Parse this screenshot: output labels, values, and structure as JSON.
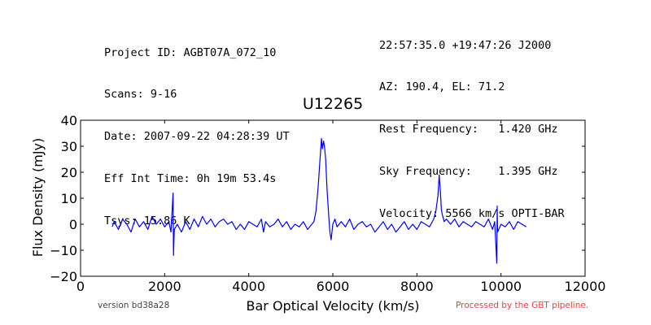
{
  "header": {
    "left_lines": [
      "Project ID: AGBT07A_072_10",
      "Scans: 9-16",
      "Date: 2007-09-22 04:28:39 UT",
      "Eff Int Time: 0h 19m 53.4s",
      "Tsys: 15.86 K"
    ],
    "right_lines": [
      "22:57:35.0 +19:47:26 J2000",
      "AZ: 190.4, EL: 71.2",
      "Rest Frequency:   1.420 GHz",
      "Sky Frequency:    1.395 GHz",
      "Velocity: 5566 km/s OPTI-BAR"
    ]
  },
  "footer": {
    "version": "version bd38a28",
    "pipeline": "Processed by the GBT pipeline."
  },
  "colors": {
    "spectrum": "#0000ff",
    "pipeline_text": "#e84040"
  },
  "chart_data": {
    "type": "line",
    "title": "U12265",
    "xlabel": "Bar Optical Velocity (km/s)",
    "ylabel": "Flux Density (mJy)",
    "xlim": [
      0,
      12000
    ],
    "ylim": [
      -20,
      40
    ],
    "xticks": [
      0,
      2000,
      4000,
      6000,
      8000,
      10000,
      12000
    ],
    "yticks": [
      -20,
      -10,
      0,
      10,
      20,
      30,
      40
    ],
    "grid": false,
    "series": [
      {
        "values_x": [
          750,
          800,
          900,
          1000,
          1100,
          1200,
          1300,
          1400,
          1500,
          1600,
          1700,
          1800,
          1900,
          2000,
          2100,
          2150,
          2200,
          2210,
          2230,
          2300,
          2400,
          2500,
          2600,
          2700,
          2800,
          2900,
          3000,
          3100,
          3200,
          3300,
          3400,
          3500,
          3600,
          3700,
          3800,
          3900,
          4000,
          4100,
          4200,
          4300,
          4350,
          4400,
          4500,
          4600,
          4700,
          4800,
          4900,
          5000,
          5100,
          5200,
          5300,
          5400,
          5500,
          5550,
          5600,
          5650,
          5700,
          5730,
          5750,
          5780,
          5800,
          5830,
          5860,
          5900,
          5930,
          5960,
          6000,
          6050,
          6100,
          6200,
          6300,
          6400,
          6500,
          6600,
          6700,
          6800,
          6900,
          7000,
          7100,
          7200,
          7300,
          7400,
          7500,
          7600,
          7700,
          7800,
          7900,
          8000,
          8100,
          8200,
          8300,
          8400,
          8450,
          8500,
          8530,
          8560,
          8580,
          8600,
          8650,
          8700,
          8800,
          8900,
          9000,
          9100,
          9200,
          9300,
          9400,
          9500,
          9600,
          9700,
          9800,
          9850,
          9900,
          9910,
          9920,
          10000,
          10100,
          10200,
          10300,
          10400,
          10500,
          10600
        ],
        "values_y": [
          -1,
          1,
          -2,
          2,
          0,
          -3,
          2,
          -1,
          1,
          -2,
          3,
          0,
          2,
          -1,
          1,
          -3,
          12,
          -12,
          -2,
          0,
          -3,
          1,
          -2,
          2,
          -1,
          3,
          0,
          2,
          -1,
          1,
          2,
          0,
          1,
          -2,
          0,
          -2,
          1,
          0,
          -1,
          2,
          -3,
          1,
          -1,
          0,
          2,
          -1,
          1,
          -2,
          0,
          -1,
          1,
          -2,
          0,
          1,
          5,
          14,
          26,
          33,
          29,
          32,
          30,
          25,
          14,
          4,
          -3,
          -6,
          0,
          2,
          -1,
          1,
          -1,
          2,
          -2,
          0,
          1,
          -1,
          0,
          -3,
          -1,
          1,
          -2,
          0,
          -3,
          -1,
          1,
          -2,
          0,
          -2,
          1,
          0,
          -1,
          2,
          5,
          11,
          19,
          12,
          6,
          4,
          1,
          2,
          0,
          2,
          -1,
          1,
          0,
          -1,
          1,
          0,
          -1,
          2,
          -2,
          1,
          -15,
          7,
          -3,
          0,
          -1,
          1,
          -2,
          1,
          0,
          -1
        ]
      }
    ]
  }
}
